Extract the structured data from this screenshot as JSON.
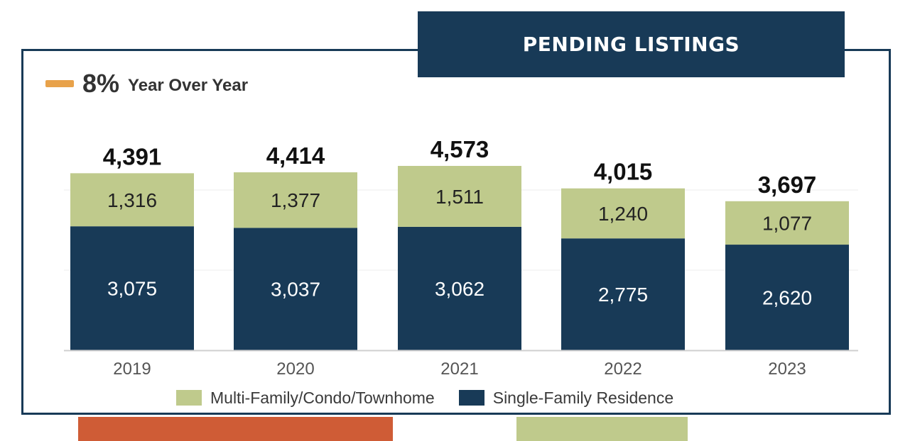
{
  "header": {
    "title": "PENDING LISTINGS"
  },
  "yoy": {
    "value": "8%",
    "label": "Year Over Year",
    "icon": "dash-icon"
  },
  "colors": {
    "single_family": "#183a57",
    "multi_family": "#bfca8c",
    "accent": "#e8a24a",
    "deco_orange": "#cf5c36"
  },
  "legend": {
    "items": [
      {
        "label": "Multi-Family/Condo/Townhome",
        "color": "#bfca8c"
      },
      {
        "label": "Single-Family Residence",
        "color": "#183a57"
      }
    ]
  },
  "chart_data": {
    "type": "bar",
    "stacked": true,
    "categories": [
      "2019",
      "2020",
      "2021",
      "2022",
      "2023"
    ],
    "series": [
      {
        "name": "Single-Family Residence",
        "values": [
          3075,
          3037,
          3062,
          2775,
          2620
        ]
      },
      {
        "name": "Multi-Family/Condo/Townhome",
        "values": [
          1316,
          1377,
          1511,
          1240,
          1077
        ]
      }
    ],
    "totals": [
      4391,
      4414,
      4573,
      4015,
      3697
    ],
    "value_labels": {
      "single": [
        "3,075",
        "3,037",
        "3,062",
        "2,775",
        "2,620"
      ],
      "multi": [
        "1,316",
        "1,377",
        "1,511",
        "1,240",
        "1,077"
      ],
      "totals": [
        "4,391",
        "4,414",
        "4,573",
        "4,015",
        "3,697"
      ]
    },
    "ylim": [
      0,
      4573
    ],
    "grid": true,
    "legend_position": "bottom"
  }
}
